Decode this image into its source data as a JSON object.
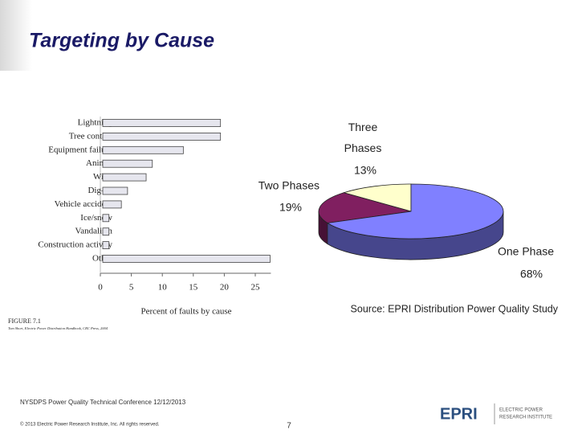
{
  "slide": {
    "title": "Targeting by Cause",
    "footer": {
      "conference": "NYSDPS Power Quality Technical Conference  12/12/2013",
      "copyright": "© 2013 Electric Power Research Institute, Inc. All rights reserved.",
      "page": "7",
      "logo": "EPRI",
      "logo_text_1": "ELECTRIC POWER",
      "logo_text_2": "RESEARCH INSTITUTE"
    }
  },
  "chart_data": [
    {
      "type": "bar",
      "orientation": "horizontal",
      "categories": [
        "Lightning",
        "Tree contact",
        "Equipment failure",
        "Animal",
        "Wind",
        "Dig–in",
        "Vehicle accident",
        "Ice/snow",
        "Vandalism",
        "Construction activity",
        "Other"
      ],
      "values": [
        19,
        19,
        13,
        8,
        7,
        4,
        3,
        1,
        1,
        1,
        27
      ],
      "color": "#e6e6ee",
      "xlim": [
        0,
        27
      ],
      "xticks": [
        0,
        5,
        10,
        15,
        20,
        25
      ],
      "x_label": "Percent of faults by cause",
      "figure_label": "FIGURE 7.1",
      "citation": "Tom Short, Electric Power Distribution Handbook, CRC Press, 2004"
    },
    {
      "type": "pie",
      "categories": [
        "Three Phases",
        "Two Phases",
        "One Phase"
      ],
      "values": [
        13,
        19,
        68
      ],
      "value_labels": [
        "13%",
        "19%",
        "68%"
      ],
      "colors": [
        "#ffffcc",
        "#801f60",
        "#8080ff"
      ],
      "source": "Source: EPRI Distribution Power Quality Study"
    }
  ]
}
